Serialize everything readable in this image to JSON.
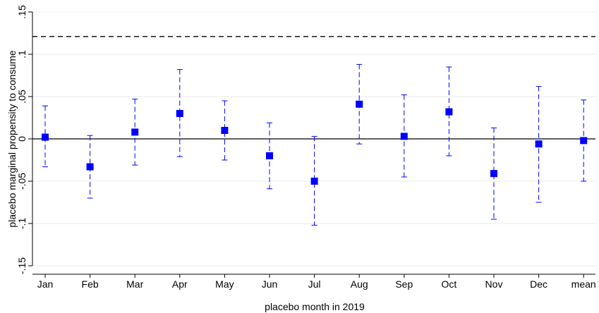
{
  "chart_data": {
    "type": "scatter",
    "subtype": "point estimates with confidence intervals",
    "title": "",
    "xlabel": "placebo month in 2019",
    "ylabel": "placebo marginal propensity to consume",
    "categories": [
      "Jan",
      "Feb",
      "Mar",
      "Apr",
      "May",
      "Jun",
      "Jul",
      "Aug",
      "Sep",
      "Oct",
      "Nov",
      "Dec",
      "mean"
    ],
    "series": [
      {
        "estimates": [
          0.002,
          -0.033,
          0.008,
          0.03,
          0.01,
          -0.02,
          -0.05,
          0.041,
          0.003,
          0.032,
          -0.041,
          -0.006,
          -0.002
        ],
        "ci_lower": [
          -0.033,
          -0.07,
          -0.031,
          -0.021,
          -0.025,
          -0.059,
          -0.102,
          -0.006,
          -0.045,
          -0.02,
          -0.095,
          -0.075,
          -0.05
        ],
        "ci_upper": [
          0.039,
          0.004,
          0.047,
          0.082,
          0.045,
          0.019,
          0.003,
          0.088,
          0.052,
          0.085,
          0.013,
          0.062,
          0.046
        ]
      }
    ],
    "yticks": [
      -0.15,
      -0.1,
      -0.05,
      0,
      0.05,
      0.1,
      0.15
    ],
    "ytick_labels": [
      "-.15",
      "-.1",
      "-.05",
      "0",
      ".05",
      ".1",
      ".15"
    ],
    "ylim": [
      -0.15,
      0.15
    ],
    "reference_lines": [
      {
        "y": 0,
        "style": "solid"
      },
      {
        "y": 0.121,
        "style": "dashed"
      }
    ],
    "grid": "horizontal",
    "marker_color": "#0000ff",
    "ci_color": "#0000ff",
    "grid_color": "#ebebeb"
  }
}
